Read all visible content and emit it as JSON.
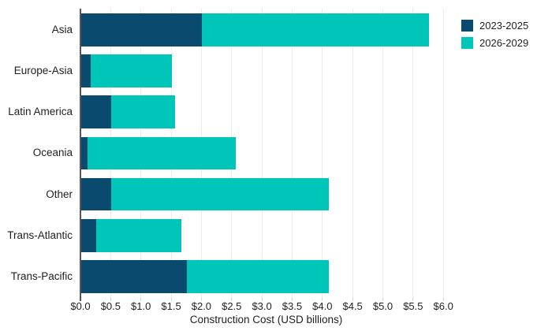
{
  "chart_data": {
    "type": "bar",
    "orientation": "horizontal",
    "stacked": true,
    "title": "",
    "xlabel": "Construction Cost (USD billions)",
    "ylabel": "",
    "categories": [
      "Asia",
      "Europe-Asia",
      "Latin America",
      "Oceania",
      "Other",
      "Trans-Atlantic",
      "Trans-Pacific"
    ],
    "series": [
      {
        "name": "2023-2025",
        "color": "#0a4a6e",
        "values": [
          2.0,
          0.15,
          0.5,
          0.1,
          0.5,
          0.25,
          1.75
        ]
      },
      {
        "name": "2026-2029",
        "color": "#00c6b9",
        "values": [
          3.75,
          1.35,
          1.05,
          2.45,
          3.6,
          1.4,
          2.35
        ]
      }
    ],
    "totals": [
      5.75,
      1.5,
      1.55,
      2.55,
      4.1,
      1.65,
      4.1
    ],
    "xlim": [
      0,
      6.15
    ],
    "xticks": [
      0,
      0.5,
      1.0,
      1.5,
      2.0,
      2.5,
      3.0,
      3.5,
      4.0,
      4.5,
      5.0,
      5.5,
      6.0
    ],
    "xtick_labels": [
      "$0.0",
      "$0.5",
      "$1.0",
      "$1.5",
      "$2.0",
      "$2.5",
      "$3.0",
      "$3.5",
      "$4.0",
      "$4.5",
      "$5.0",
      "$5.5",
      "$6.0"
    ],
    "grid": true,
    "legend_position": "top-right",
    "colors": {
      "background": "#ffffff",
      "gridline": "#ececec",
      "axis_line": "#555555",
      "text": "#1f1f1f"
    }
  }
}
